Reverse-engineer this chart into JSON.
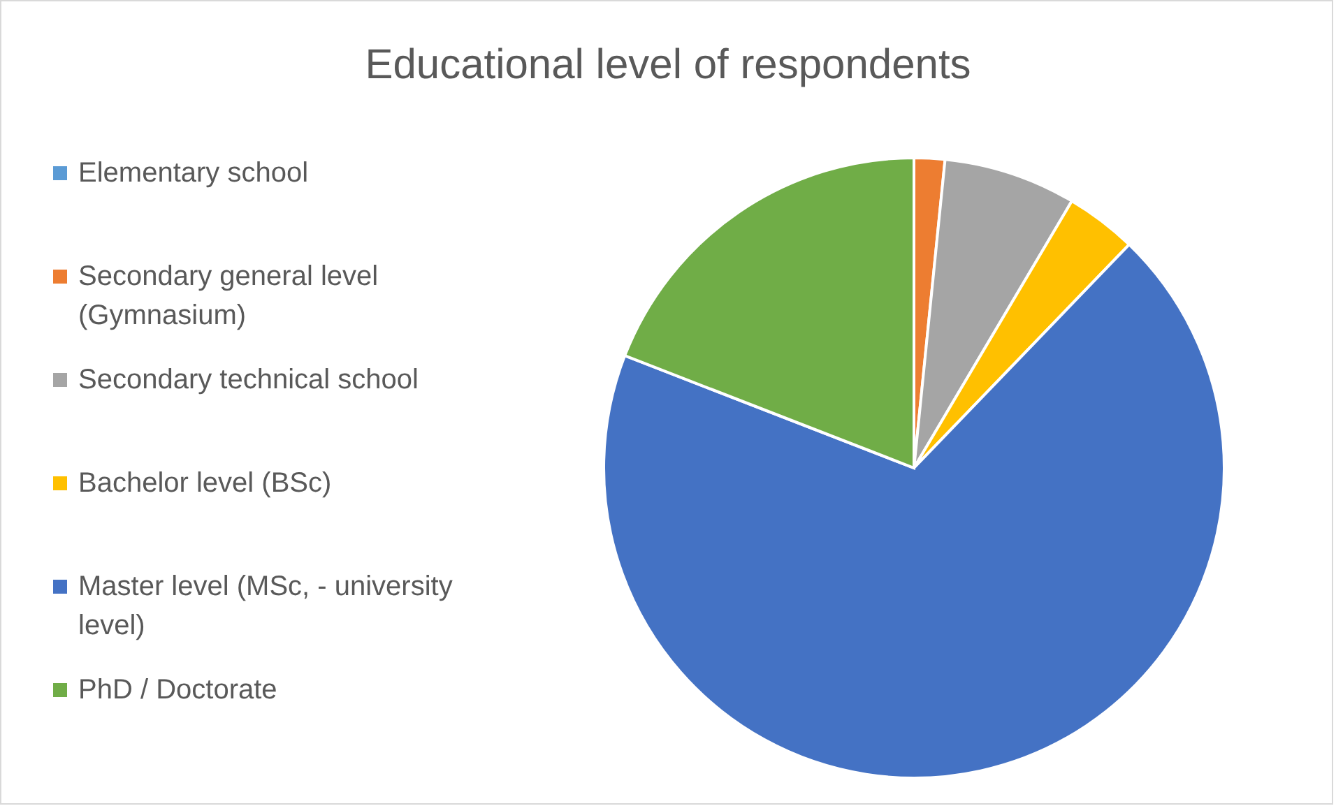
{
  "chart_data": {
    "type": "pie",
    "title": "Educational level of respondents",
    "legend": "left",
    "categories": [
      "Elementary school",
      "Secondary general level (Gymnasium)",
      "Secondary technical school",
      "Bachelor level (BSc)",
      "Master level (MSc, - university level)",
      "PhD / Doctorate"
    ],
    "values": [
      0,
      1.6,
      6.9,
      3.7,
      68.7,
      19.1
    ],
    "colors": [
      "#5b9bd5",
      "#ed7d31",
      "#a5a5a5",
      "#ffc000",
      "#4472c4",
      "#70ad47"
    ]
  }
}
